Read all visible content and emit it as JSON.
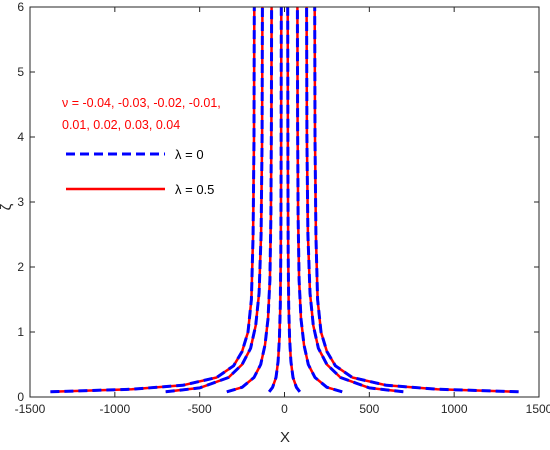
{
  "chart_data": {
    "type": "line",
    "title": "",
    "xlabel": "X",
    "ylabel": "ζ",
    "xlim": [
      -1500,
      1500
    ],
    "ylim": [
      0,
      6
    ],
    "xticks": [
      -1500,
      -1000,
      -500,
      0,
      500,
      1000,
      1500
    ],
    "yticks": [
      0,
      1,
      2,
      3,
      4,
      5,
      6
    ],
    "grid": false,
    "legend": {
      "placement": "upper-left",
      "entries": [
        {
          "label": "λ = 0",
          "color": "#0000ff",
          "style": "dashed"
        },
        {
          "label": "λ = 0.5",
          "color": "#ff0000",
          "style": "solid"
        }
      ]
    },
    "annotation": {
      "lines": [
        "ν = -0.04, -0.03, -0.02, -0.01,",
        "0.01, 0.02, 0.03, 0.04"
      ],
      "color": "#ff0000"
    },
    "series": [
      {
        "nu": -0.04,
        "lambda": 0,
        "color": "#0000ff",
        "style": "dashed",
        "points": [
          [
            -1380,
            0.08
          ],
          [
            -900,
            0.12
          ],
          [
            -600,
            0.18
          ],
          [
            -400,
            0.3
          ],
          [
            -300,
            0.48
          ],
          [
            -250,
            0.7
          ],
          [
            -215,
            1.0
          ],
          [
            -195,
            1.5
          ],
          [
            -185,
            2.5
          ],
          [
            -180,
            4.0
          ],
          [
            -178,
            6.0
          ]
        ]
      },
      {
        "nu": -0.04,
        "lambda": 0.5,
        "color": "#ff0000",
        "style": "solid",
        "points": [
          [
            -1380,
            0.08
          ],
          [
            -900,
            0.12
          ],
          [
            -600,
            0.18
          ],
          [
            -400,
            0.3
          ],
          [
            -300,
            0.48
          ],
          [
            -250,
            0.7
          ],
          [
            -215,
            1.0
          ],
          [
            -195,
            1.5
          ],
          [
            -185,
            2.5
          ],
          [
            -180,
            4.0
          ],
          [
            -178,
            6.0
          ]
        ]
      },
      {
        "nu": -0.03,
        "lambda": 0,
        "color": "#0000ff",
        "style": "dashed",
        "points": [
          [
            -700,
            0.08
          ],
          [
            -500,
            0.14
          ],
          [
            -330,
            0.3
          ],
          [
            -250,
            0.5
          ],
          [
            -200,
            0.75
          ],
          [
            -170,
            1.1
          ],
          [
            -150,
            1.6
          ],
          [
            -138,
            2.5
          ],
          [
            -132,
            4.0
          ],
          [
            -130,
            6.0
          ]
        ]
      },
      {
        "nu": -0.03,
        "lambda": 0.5,
        "color": "#ff0000",
        "style": "solid",
        "points": [
          [
            -700,
            0.08
          ],
          [
            -500,
            0.14
          ],
          [
            -330,
            0.3
          ],
          [
            -250,
            0.5
          ],
          [
            -200,
            0.75
          ],
          [
            -170,
            1.1
          ],
          [
            -150,
            1.6
          ],
          [
            -138,
            2.5
          ],
          [
            -132,
            4.0
          ],
          [
            -130,
            6.0
          ]
        ]
      },
      {
        "nu": -0.02,
        "lambda": 0,
        "color": "#0000ff",
        "style": "dashed",
        "points": [
          [
            -340,
            0.08
          ],
          [
            -250,
            0.15
          ],
          [
            -180,
            0.3
          ],
          [
            -140,
            0.5
          ],
          [
            -115,
            0.8
          ],
          [
            -97,
            1.2
          ],
          [
            -86,
            1.8
          ],
          [
            -80,
            2.8
          ],
          [
            -77,
            4.2
          ],
          [
            -76,
            6.0
          ]
        ]
      },
      {
        "nu": -0.02,
        "lambda": 0.5,
        "color": "#ff0000",
        "style": "solid",
        "points": [
          [
            -340,
            0.08
          ],
          [
            -250,
            0.15
          ],
          [
            -180,
            0.3
          ],
          [
            -140,
            0.5
          ],
          [
            -115,
            0.8
          ],
          [
            -97,
            1.2
          ],
          [
            -86,
            1.8
          ],
          [
            -80,
            2.8
          ],
          [
            -77,
            4.2
          ],
          [
            -76,
            6.0
          ]
        ]
      },
      {
        "nu": -0.01,
        "lambda": 0,
        "color": "#0000ff",
        "style": "dashed",
        "points": [
          [
            -90,
            0.08
          ],
          [
            -70,
            0.15
          ],
          [
            -50,
            0.3
          ],
          [
            -38,
            0.55
          ],
          [
            -30,
            0.9
          ],
          [
            -25,
            1.4
          ],
          [
            -22,
            2.2
          ],
          [
            -20,
            3.5
          ],
          [
            -19,
            6.0
          ]
        ]
      },
      {
        "nu": -0.01,
        "lambda": 0.5,
        "color": "#ff0000",
        "style": "solid",
        "points": [
          [
            -90,
            0.08
          ],
          [
            -70,
            0.15
          ],
          [
            -50,
            0.3
          ],
          [
            -38,
            0.55
          ],
          [
            -30,
            0.9
          ],
          [
            -25,
            1.4
          ],
          [
            -22,
            2.2
          ],
          [
            -20,
            3.5
          ],
          [
            -19,
            6.0
          ]
        ]
      },
      {
        "nu": 0.01,
        "lambda": 0,
        "color": "#0000ff",
        "style": "dashed",
        "points": [
          [
            90,
            0.08
          ],
          [
            70,
            0.15
          ],
          [
            50,
            0.3
          ],
          [
            38,
            0.55
          ],
          [
            30,
            0.9
          ],
          [
            25,
            1.4
          ],
          [
            22,
            2.2
          ],
          [
            20,
            3.5
          ],
          [
            19,
            6.0
          ]
        ]
      },
      {
        "nu": 0.01,
        "lambda": 0.5,
        "color": "#ff0000",
        "style": "solid",
        "points": [
          [
            90,
            0.08
          ],
          [
            70,
            0.15
          ],
          [
            50,
            0.3
          ],
          [
            38,
            0.55
          ],
          [
            30,
            0.9
          ],
          [
            25,
            1.4
          ],
          [
            22,
            2.2
          ],
          [
            20,
            3.5
          ],
          [
            19,
            6.0
          ]
        ]
      },
      {
        "nu": 0.02,
        "lambda": 0,
        "color": "#0000ff",
        "style": "dashed",
        "points": [
          [
            340,
            0.08
          ],
          [
            250,
            0.15
          ],
          [
            180,
            0.3
          ],
          [
            140,
            0.5
          ],
          [
            115,
            0.8
          ],
          [
            97,
            1.2
          ],
          [
            86,
            1.8
          ],
          [
            80,
            2.8
          ],
          [
            77,
            4.2
          ],
          [
            76,
            6.0
          ]
        ]
      },
      {
        "nu": 0.02,
        "lambda": 0.5,
        "color": "#ff0000",
        "style": "solid",
        "points": [
          [
            340,
            0.08
          ],
          [
            250,
            0.15
          ],
          [
            180,
            0.3
          ],
          [
            140,
            0.5
          ],
          [
            115,
            0.8
          ],
          [
            97,
            1.2
          ],
          [
            86,
            1.8
          ],
          [
            80,
            2.8
          ],
          [
            77,
            4.2
          ],
          [
            76,
            6.0
          ]
        ]
      },
      {
        "nu": 0.03,
        "lambda": 0,
        "color": "#0000ff",
        "style": "dashed",
        "points": [
          [
            700,
            0.08
          ],
          [
            500,
            0.14
          ],
          [
            330,
            0.3
          ],
          [
            250,
            0.5
          ],
          [
            200,
            0.75
          ],
          [
            170,
            1.1
          ],
          [
            150,
            1.6
          ],
          [
            138,
            2.5
          ],
          [
            132,
            4.0
          ],
          [
            130,
            6.0
          ]
        ]
      },
      {
        "nu": 0.03,
        "lambda": 0.5,
        "color": "#ff0000",
        "style": "solid",
        "points": [
          [
            700,
            0.08
          ],
          [
            500,
            0.14
          ],
          [
            330,
            0.3
          ],
          [
            250,
            0.5
          ],
          [
            200,
            0.75
          ],
          [
            170,
            1.1
          ],
          [
            150,
            1.6
          ],
          [
            138,
            2.5
          ],
          [
            132,
            4.0
          ],
          [
            130,
            6.0
          ]
        ]
      },
      {
        "nu": 0.04,
        "lambda": 0,
        "color": "#0000ff",
        "style": "dashed",
        "points": [
          [
            1380,
            0.08
          ],
          [
            900,
            0.12
          ],
          [
            600,
            0.18
          ],
          [
            400,
            0.3
          ],
          [
            300,
            0.48
          ],
          [
            250,
            0.7
          ],
          [
            215,
            1.0
          ],
          [
            195,
            1.5
          ],
          [
            185,
            2.5
          ],
          [
            180,
            4.0
          ],
          [
            178,
            6.0
          ]
        ]
      },
      {
        "nu": 0.04,
        "lambda": 0.5,
        "color": "#ff0000",
        "style": "solid",
        "points": [
          [
            1380,
            0.08
          ],
          [
            900,
            0.12
          ],
          [
            600,
            0.18
          ],
          [
            400,
            0.3
          ],
          [
            300,
            0.48
          ],
          [
            250,
            0.7
          ],
          [
            215,
            1.0
          ],
          [
            195,
            1.5
          ],
          [
            185,
            2.5
          ],
          [
            180,
            4.0
          ],
          [
            178,
            6.0
          ]
        ]
      }
    ]
  }
}
